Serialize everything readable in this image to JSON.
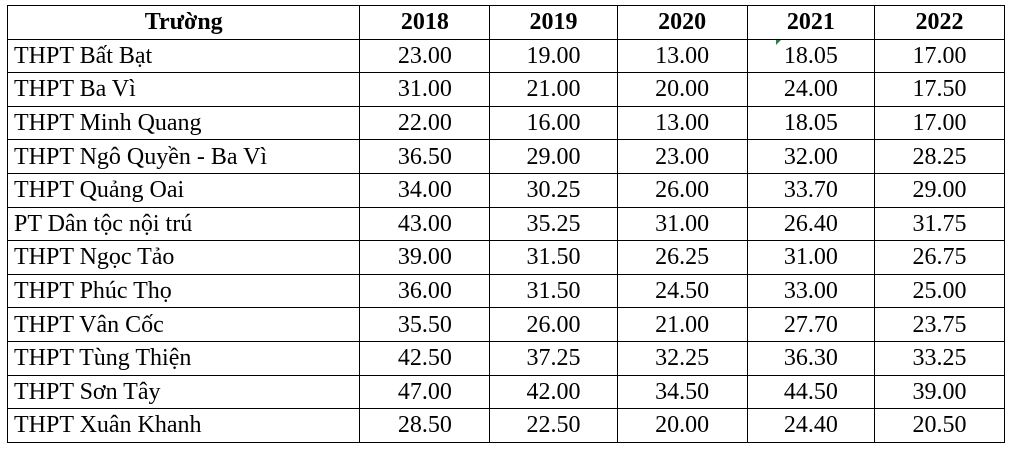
{
  "table": {
    "headers": [
      "Trường",
      "2018",
      "2019",
      "2020",
      "2021",
      "2022"
    ],
    "rows": [
      {
        "name": "THPT Bất Bạt",
        "values": [
          "23.00",
          "19.00",
          "13.00",
          "18.05",
          "17.00"
        ]
      },
      {
        "name": "THPT Ba Vì",
        "values": [
          "31.00",
          "21.00",
          "20.00",
          "24.00",
          "17.50"
        ]
      },
      {
        "name": "THPT Minh Quang",
        "values": [
          "22.00",
          "16.00",
          "13.00",
          "18.05",
          "17.00"
        ]
      },
      {
        "name": "THPT Ngô Quyền - Ba Vì",
        "values": [
          "36.50",
          "29.00",
          "23.00",
          "32.00",
          "28.25"
        ]
      },
      {
        "name": "THPT Quảng Oai",
        "values": [
          "34.00",
          "30.25",
          "26.00",
          "33.70",
          "29.00"
        ]
      },
      {
        "name": "PT Dân tộc nội trú",
        "values": [
          "43.00",
          "35.25",
          "31.00",
          "26.40",
          "31.75"
        ]
      },
      {
        "name": "THPT Ngọc Tảo",
        "values": [
          "39.00",
          "31.50",
          "26.25",
          "31.00",
          "26.75"
        ]
      },
      {
        "name": "THPT Phúc Thọ",
        "values": [
          "36.00",
          "31.50",
          "24.50",
          "33.00",
          "25.00"
        ]
      },
      {
        "name": "THPT Vân Cốc",
        "values": [
          "35.50",
          "26.00",
          "21.00",
          "27.70",
          "23.75"
        ]
      },
      {
        "name": "THPT Tùng Thiện",
        "values": [
          "42.50",
          "37.25",
          "32.25",
          "36.30",
          "33.25"
        ]
      },
      {
        "name": "THPT Sơn Tây",
        "values": [
          "47.00",
          "42.00",
          "34.50",
          "44.50",
          "39.00"
        ]
      },
      {
        "name": "THPT Xuân Khanh",
        "values": [
          "28.50",
          "22.50",
          "20.00",
          "24.40",
          "20.50"
        ]
      }
    ]
  },
  "colors": {
    "border": "#000000",
    "background": "#ffffff",
    "cell_marker": "#1f8a3a"
  }
}
